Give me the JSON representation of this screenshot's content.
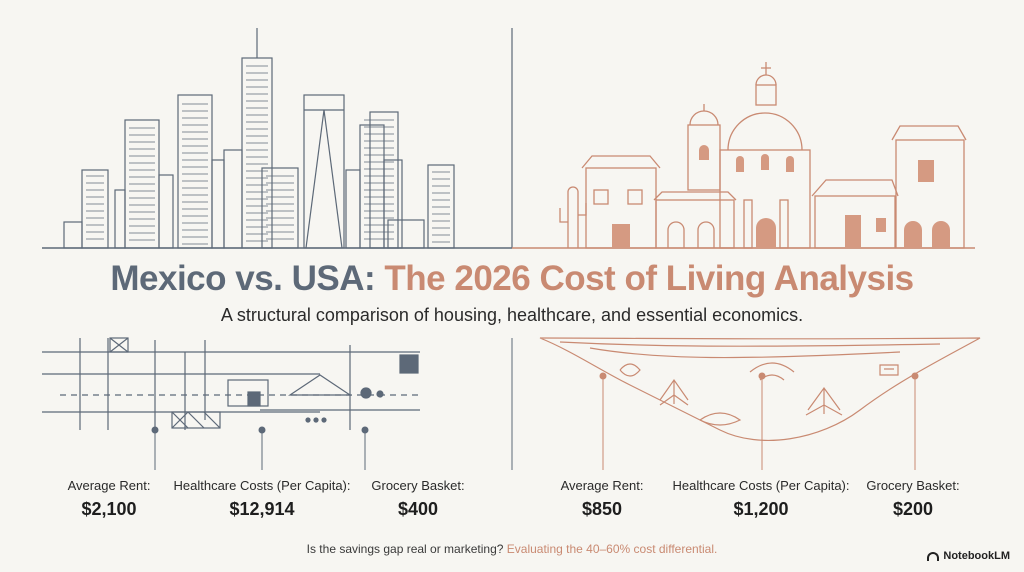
{
  "title": {
    "part1": "Mexico vs. USA:",
    "part2": "The 2026 Cost of Living Analysis"
  },
  "subtitle": "A structural comparison of housing, healthcare, and essential economics.",
  "usa_stats": [
    {
      "label": "Average Rent:",
      "value": "$2,100"
    },
    {
      "label": "Healthcare Costs (Per Capita):",
      "value": "$12,914"
    },
    {
      "label": "Grocery Basket:",
      "value": "$400"
    }
  ],
  "mexico_stats": [
    {
      "label": "Average Rent:",
      "value": "$850"
    },
    {
      "label": "Healthcare Costs (Per Capita):",
      "value": "$1,200"
    },
    {
      "label": "Grocery Basket:",
      "value": "$200"
    }
  ],
  "footer": {
    "question": "Is the savings gap real or marketing?",
    "highlight": "Evaluating the 40–60% cost differential."
  },
  "brand": "NotebookLM",
  "colors": {
    "usa": "#5d6978",
    "mexico": "#c98a72",
    "background": "#f7f6f2"
  }
}
